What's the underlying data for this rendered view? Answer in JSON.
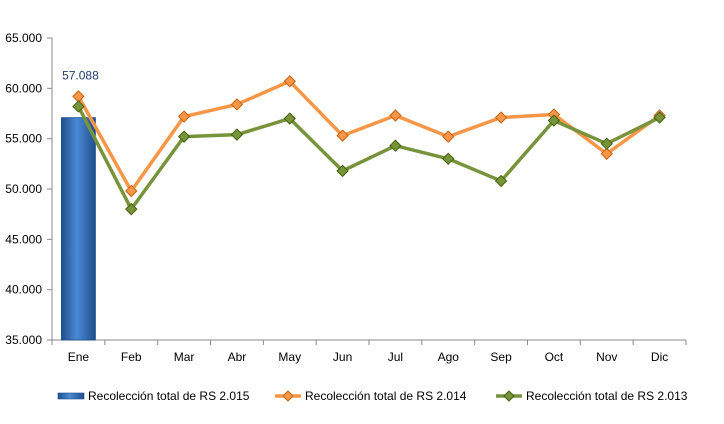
{
  "chart_data": {
    "type": "bar+line",
    "categories": [
      "Ene",
      "Feb",
      "Mar",
      "Abr",
      "May",
      "Jun",
      "Jul",
      "Ago",
      "Sep",
      "Oct",
      "Nov",
      "Dic"
    ],
    "ylim": [
      35000,
      65000
    ],
    "yticks": [
      35000,
      40000,
      45000,
      50000,
      55000,
      60000,
      65000
    ],
    "ytick_labels": [
      "35.000",
      "40.000",
      "45.000",
      "50.000",
      "55.000",
      "60.000",
      "65.000"
    ],
    "grid": false,
    "legend_position": "bottom",
    "series": [
      {
        "name": "Recolección total de RS 2.015",
        "kind": "bar",
        "color": "#2e6db4",
        "values": [
          57088,
          null,
          null,
          null,
          null,
          null,
          null,
          null,
          null,
          null,
          null,
          null
        ],
        "data_labels": [
          "57.088"
        ]
      },
      {
        "name": "Recolección total de RS 2.014",
        "kind": "line",
        "color": "#f79646",
        "values": [
          59200,
          49800,
          57200,
          58400,
          60700,
          55300,
          57300,
          55200,
          57100,
          57400,
          53500,
          57300
        ]
      },
      {
        "name": "Recolección total de RS 2.013",
        "kind": "line",
        "color": "#77933c",
        "values": [
          58200,
          48000,
          55200,
          55400,
          57000,
          51800,
          54300,
          53000,
          50800,
          56800,
          54500,
          57100
        ]
      }
    ]
  }
}
